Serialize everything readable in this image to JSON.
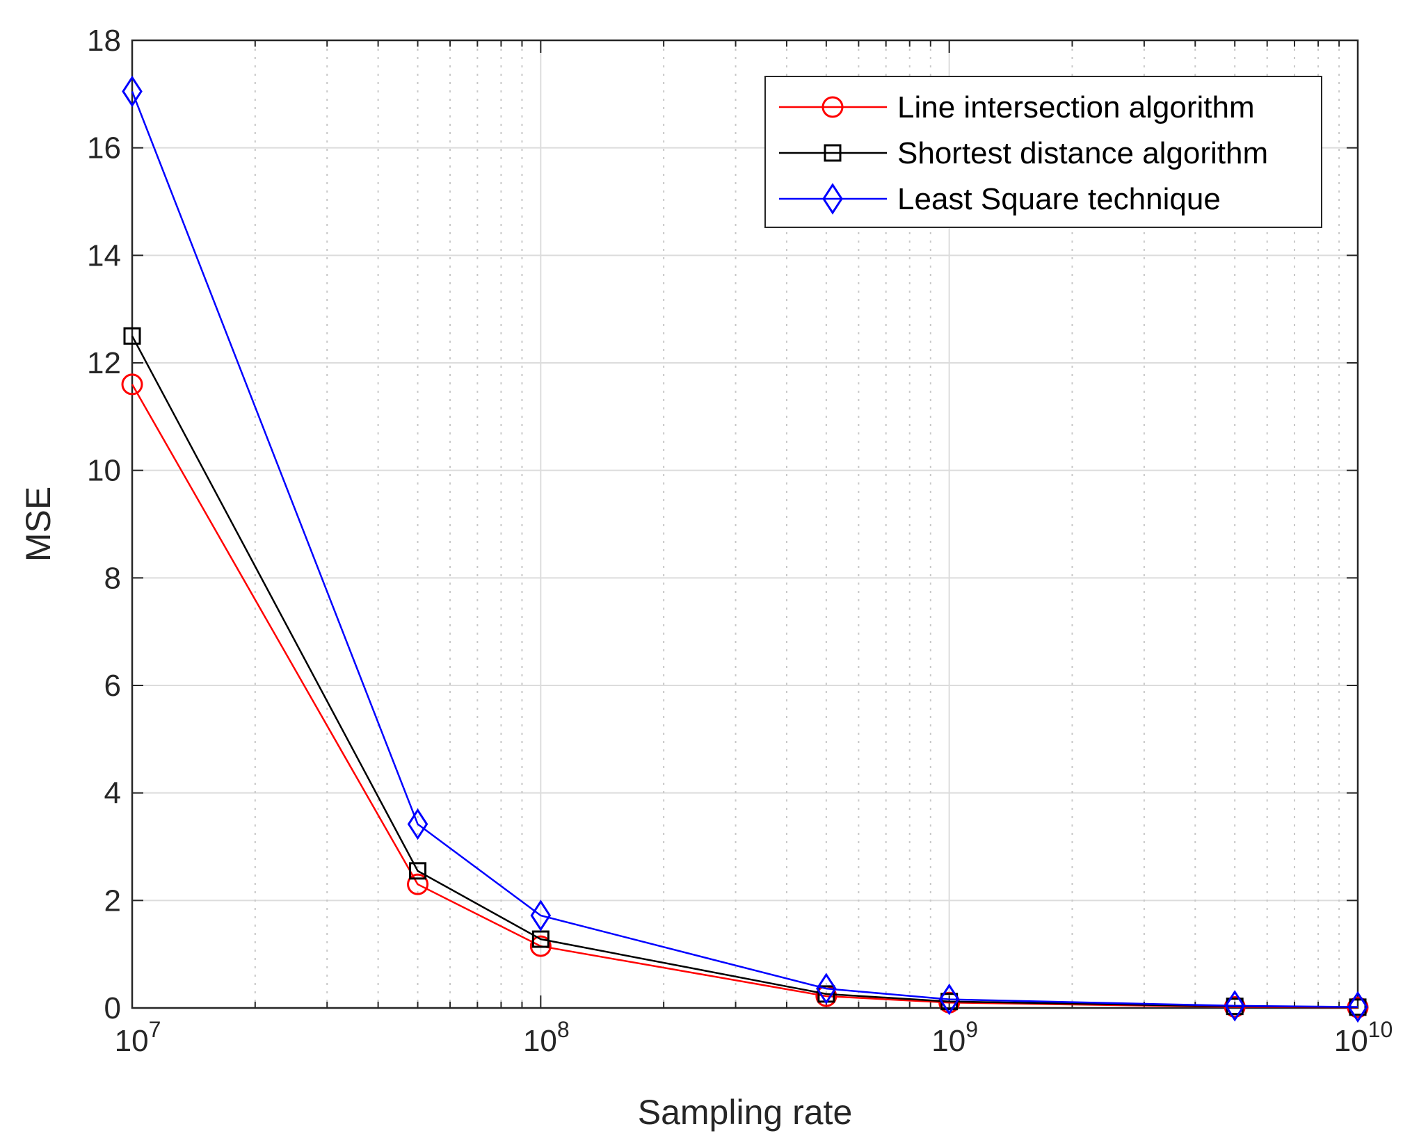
{
  "chart_data": {
    "type": "line",
    "xscale": "log",
    "xlim": [
      10000000,
      10000000000
    ],
    "ylim": [
      0,
      18
    ],
    "grid": true,
    "xlabel": "Sampling rate",
    "ylabel": "MSE",
    "legend_position": "top-right",
    "x": [
      10000000,
      50000000,
      100000000,
      500000000,
      1000000000,
      5000000000,
      10000000000
    ],
    "yticks": [
      "0",
      "2",
      "4",
      "6",
      "8",
      "10",
      "12",
      "14",
      "16",
      "18"
    ],
    "xticks": [
      {
        "value": 10000000,
        "base": "10",
        "exp": "7"
      },
      {
        "value": 100000000,
        "base": "10",
        "exp": "8"
      },
      {
        "value": 1000000000,
        "base": "10",
        "exp": "9"
      },
      {
        "value": 10000000000,
        "base": "10",
        "exp": "10"
      }
    ],
    "series": [
      {
        "name": "Line intersection algorithm",
        "color": "#ff0000",
        "marker": "circle",
        "values": [
          11.6,
          2.3,
          1.15,
          0.22,
          0.1,
          0.02,
          0.01
        ]
      },
      {
        "name": "Shortest distance algorithm",
        "color": "#000000",
        "marker": "square",
        "values": [
          12.5,
          2.55,
          1.28,
          0.26,
          0.12,
          0.03,
          0.015
        ]
      },
      {
        "name": "Least Square technique",
        "color": "#0000ff",
        "marker": "diamond",
        "values": [
          17.05,
          3.42,
          1.72,
          0.36,
          0.16,
          0.04,
          0.02
        ]
      }
    ]
  }
}
